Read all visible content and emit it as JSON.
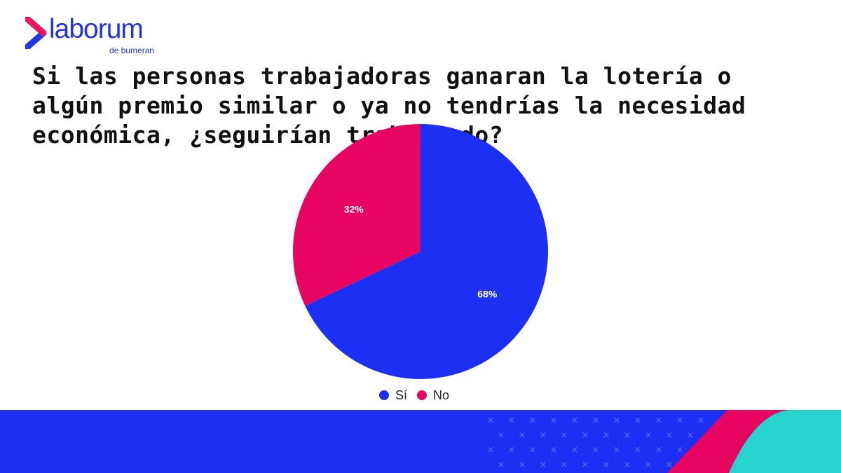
{
  "brand": {
    "name": "laborum",
    "sub": "de bumeran",
    "color": "#2233e8",
    "accent": "#e4175f"
  },
  "chart_data": {
    "type": "pie",
    "title": "Si las personas trabajadoras ganaran la lotería o algún premio similar o ya no tendrías la necesidad económica, ¿seguirían trabajando?",
    "categories": [
      "Sí",
      "No"
    ],
    "values": [
      68,
      32
    ],
    "labels": [
      "68%",
      "32%"
    ],
    "colors": [
      "#1d2ff2",
      "#e80461"
    ],
    "legend": "bottom"
  },
  "footer": {
    "colors": [
      "#1d2ff2",
      "#e80461",
      "#27d4cd"
    ]
  }
}
